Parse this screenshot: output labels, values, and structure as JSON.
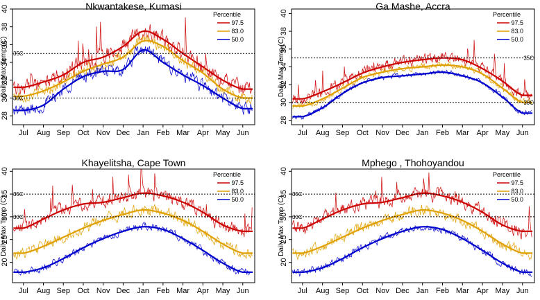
{
  "figure": {
    "description_colors": {
      "97.5": "#cc0000",
      "83.0": "#e0a000",
      "50.0": "#0000cc"
    }
  },
  "chart_data": [
    {
      "type": "line",
      "title": "Nkwantakese, Kumasi",
      "ylabel": "Daily Max Temp (C)",
      "xlabel": "",
      "x_ticks": [
        "Jul",
        "Aug",
        "Sep",
        "Oct",
        "Nov",
        "Dec",
        "Jan",
        "Feb",
        "Mar",
        "Apr",
        "May",
        "Jun"
      ],
      "ylim": [
        27,
        40
      ],
      "y_ticks": [
        28,
        30,
        32,
        34,
        36,
        38,
        40
      ],
      "reference_lines": [
        {
          "value": 35,
          "label": "35C"
        },
        {
          "value": 30,
          "label": "30C"
        }
      ],
      "legend": {
        "title": "Percentile",
        "position": "top-right"
      },
      "series": [
        {
          "name": "97.5",
          "color": "#cc0000",
          "monthly_smooth": [
            31.2,
            31.8,
            32.6,
            34.0,
            34.6,
            35.8,
            37.5,
            36.6,
            35.0,
            33.5,
            32.0,
            31.0
          ],
          "noise": 1.0
        },
        {
          "name": "83.0",
          "color": "#e0a000",
          "monthly_smooth": [
            30.2,
            30.8,
            31.8,
            33.0,
            33.8,
            34.6,
            36.4,
            35.8,
            34.2,
            32.8,
            31.0,
            30.0
          ],
          "noise": 0.7
        },
        {
          "name": "50.0",
          "color": "#0000cc",
          "monthly_smooth": [
            28.6,
            29.2,
            31.0,
            32.4,
            33.0,
            33.2,
            35.4,
            34.0,
            32.6,
            31.4,
            30.0,
            28.8
          ],
          "noise": 0.8
        }
      ]
    },
    {
      "type": "line",
      "title": "Ga Mashe, Accra",
      "ylabel": "Daily Max Temp (C)",
      "xlabel": "",
      "x_ticks": [
        "Jul",
        "Aug",
        "Sep",
        "Oct",
        "Nov",
        "Dec",
        "Jan",
        "Feb",
        "Mar",
        "Apr",
        "May",
        "Jun"
      ],
      "ylim": [
        27.5,
        40.5
      ],
      "y_ticks": [
        28,
        30,
        32,
        34,
        36,
        38,
        40
      ],
      "reference_lines": [
        {
          "value": 35,
          "label": "35C"
        },
        {
          "value": 30,
          "label": "30C"
        }
      ],
      "legend": {
        "title": "Percentile",
        "position": "top-right"
      },
      "series": [
        {
          "name": "97.5",
          "color": "#cc0000",
          "monthly_smooth": [
            30.4,
            31.2,
            32.2,
            33.3,
            34.0,
            34.5,
            34.8,
            35.0,
            34.8,
            33.8,
            32.4,
            30.8
          ],
          "noise": 0.7
        },
        {
          "name": "83.0",
          "color": "#e0a000",
          "monthly_smooth": [
            29.6,
            30.4,
            31.6,
            32.8,
            33.4,
            33.8,
            34.0,
            34.2,
            34.0,
            33.2,
            31.6,
            30.0
          ],
          "noise": 0.4
        },
        {
          "name": "50.0",
          "color": "#0000cc",
          "monthly_smooth": [
            28.4,
            29.4,
            31.0,
            32.2,
            32.8,
            33.0,
            33.2,
            33.4,
            33.0,
            32.2,
            30.6,
            28.8
          ],
          "noise": 0.3
        }
      ]
    },
    {
      "type": "line",
      "title": "Khayelitsha, Cape Town",
      "ylabel": "Daily Max Temp (C)",
      "xlabel": "",
      "x_ticks": [
        "Jul",
        "Aug",
        "Sep",
        "Oct",
        "Nov",
        "Dec",
        "Jan",
        "Feb",
        "Mar",
        "Apr",
        "May",
        "Jun"
      ],
      "ylim": [
        15.5,
        40.5
      ],
      "y_ticks": [
        20,
        25,
        30,
        35,
        40
      ],
      "reference_lines": [
        {
          "value": 35,
          "label": "35C"
        },
        {
          "value": 30,
          "label": "30C"
        }
      ],
      "legend": {
        "title": "Percentile",
        "position": "top-right"
      },
      "series": [
        {
          "name": "97.5",
          "color": "#cc0000",
          "monthly_smooth": [
            27.5,
            29.5,
            31.5,
            32.8,
            33.2,
            34.2,
            35.2,
            34.6,
            33.2,
            31.0,
            28.2,
            26.8
          ],
          "noise": 1.6
        },
        {
          "name": "83.0",
          "color": "#e0a000",
          "monthly_smooth": [
            22.0,
            23.5,
            25.5,
            27.5,
            29.2,
            30.5,
            31.5,
            30.8,
            29.2,
            26.8,
            24.0,
            22.0
          ],
          "noise": 1.4
        },
        {
          "name": "50.0",
          "color": "#0000cc",
          "monthly_smooth": [
            17.8,
            18.8,
            20.8,
            23.2,
            25.2,
            26.8,
            27.8,
            27.2,
            25.2,
            22.6,
            19.8,
            17.8
          ],
          "noise": 0.9
        }
      ]
    },
    {
      "type": "line",
      "title": "Mphego , Thohoyandou",
      "ylabel": "Daily Max Temp (C)",
      "xlabel": "",
      "x_ticks": [
        "Jul",
        "Aug",
        "Sep",
        "Oct",
        "Nov",
        "Dec",
        "Jan",
        "Feb",
        "Mar",
        "Apr",
        "May",
        "Jun"
      ],
      "ylim": [
        15.5,
        40.5
      ],
      "y_ticks": [
        20,
        25,
        30,
        35,
        40
      ],
      "reference_lines": [
        {
          "value": 35,
          "label": "35C"
        },
        {
          "value": 30,
          "label": "30C"
        }
      ],
      "legend": {
        "title": "Percentile",
        "position": "top-right"
      },
      "series": [
        {
          "name": "97.5",
          "color": "#cc0000",
          "monthly_smooth": [
            27.5,
            29.5,
            31.5,
            32.8,
            33.2,
            34.2,
            35.2,
            34.6,
            33.2,
            31.0,
            28.2,
            26.8
          ],
          "noise": 1.6
        },
        {
          "name": "83.0",
          "color": "#e0a000",
          "monthly_smooth": [
            22.0,
            23.5,
            25.5,
            27.5,
            29.2,
            30.5,
            31.5,
            30.8,
            29.2,
            26.8,
            24.0,
            22.0
          ],
          "noise": 1.4
        },
        {
          "name": "50.0",
          "color": "#0000cc",
          "monthly_smooth": [
            17.8,
            18.8,
            20.8,
            23.2,
            25.2,
            26.8,
            27.8,
            27.2,
            25.2,
            22.6,
            19.8,
            17.8
          ],
          "noise": 0.9
        }
      ]
    }
  ]
}
